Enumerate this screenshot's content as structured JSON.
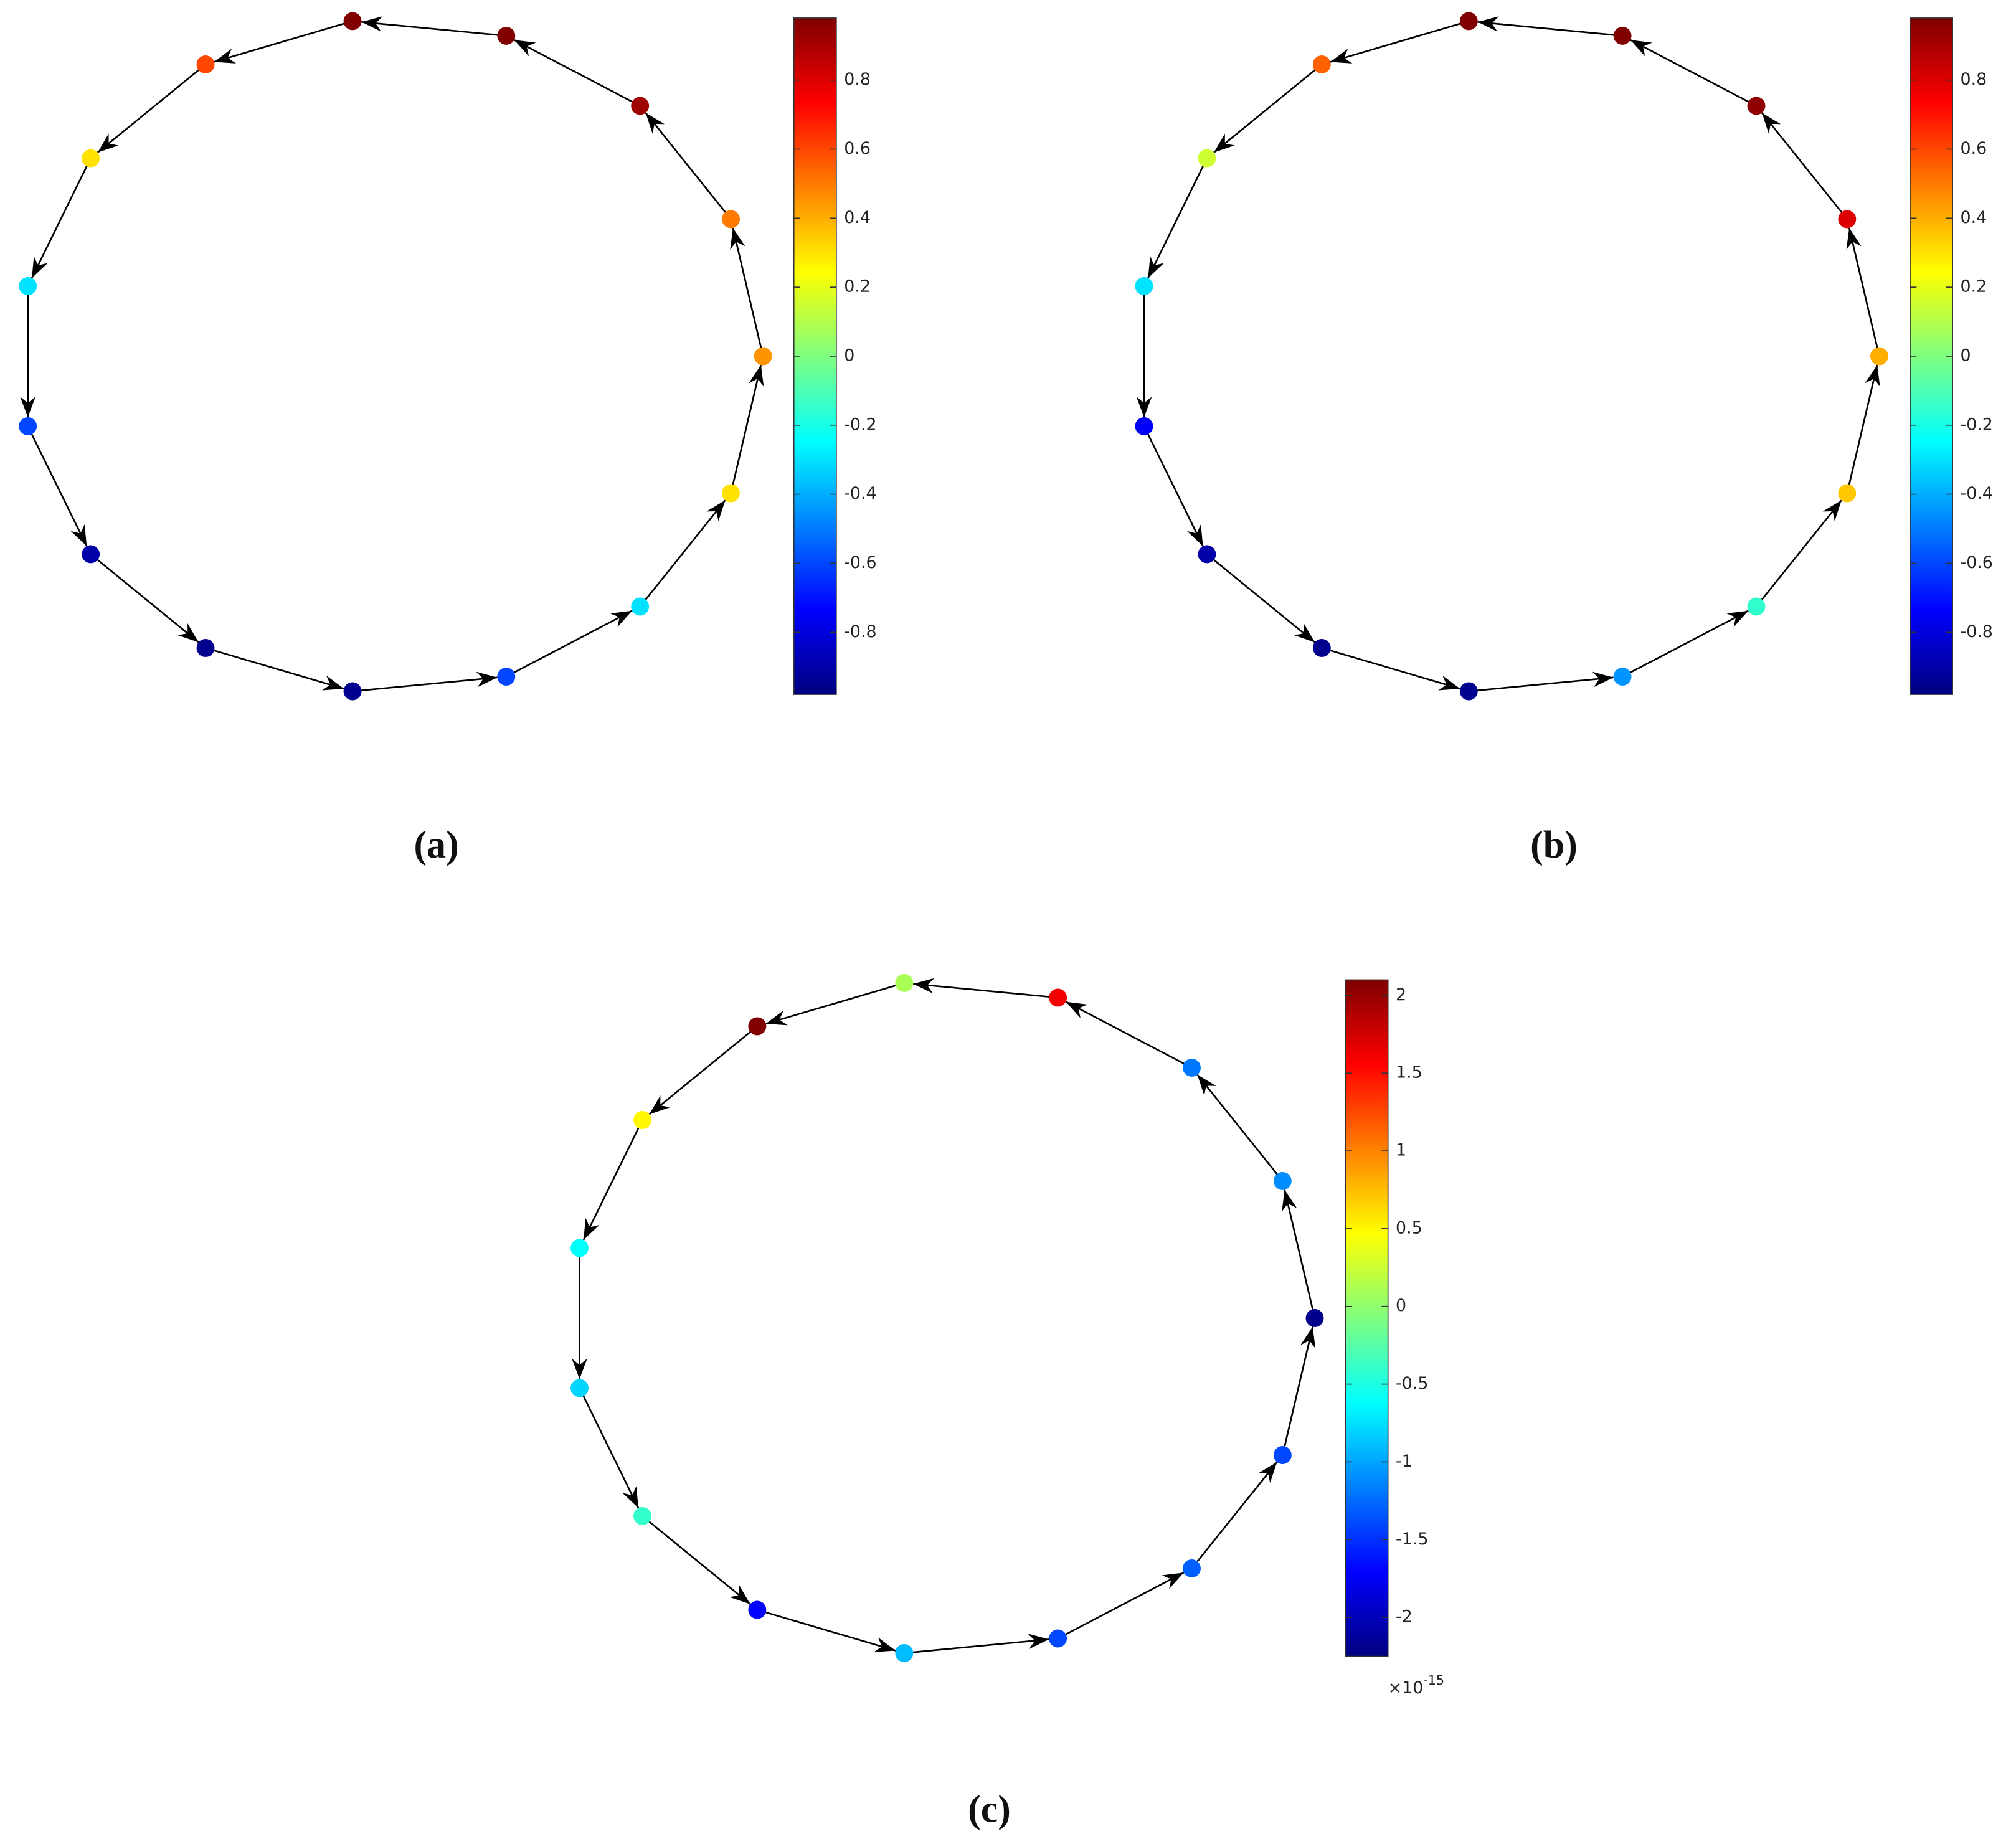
{
  "chart_data": [
    {
      "type": "network",
      "label": "(a)",
      "directed": true,
      "colormap": "jet",
      "values": [
        0.45,
        0.5,
        0.92,
        0.98,
        0.98,
        0.6,
        0.3,
        -0.3,
        -0.6,
        -0.9,
        -0.95,
        -0.95,
        -0.6,
        -0.3,
        0.3
      ],
      "clim": [
        -0.98,
        0.98
      ],
      "cticks": [
        -0.8,
        -0.6,
        -0.4,
        -0.2,
        0,
        0.2,
        0.4,
        0.6,
        0.8
      ]
    },
    {
      "type": "network",
      "label": "(b)",
      "directed": true,
      "colormap": "jet",
      "values": [
        0.4,
        0.8,
        0.95,
        0.98,
        0.98,
        0.55,
        0.15,
        -0.3,
        -0.75,
        -0.9,
        -0.95,
        -0.95,
        -0.45,
        -0.15,
        0.35
      ],
      "clim": [
        -0.98,
        0.98
      ],
      "cticks": [
        -0.8,
        -0.6,
        -0.4,
        -0.2,
        0,
        0.2,
        0.4,
        0.6,
        0.8
      ]
    },
    {
      "type": "network",
      "label": "(c)",
      "directed": true,
      "colormap": "jet",
      "values": [
        -2.2,
        -1.1,
        -1.2,
        1.6,
        0.1,
        2.1,
        0.5,
        -0.6,
        -0.8,
        -0.4,
        -1.7,
        -0.9,
        -1.4,
        -1.3,
        -1.4
      ],
      "clim": [
        -2.25,
        2.1
      ],
      "cticks": [
        -2,
        -1.5,
        -1,
        -0.5,
        0,
        0.5,
        1,
        1.5,
        2
      ],
      "multiplier": "×10",
      "multiplier_exponent": "-15"
    }
  ]
}
